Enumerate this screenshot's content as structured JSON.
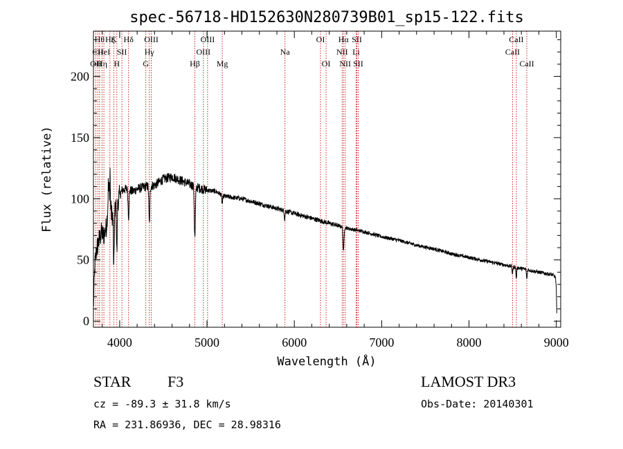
{
  "chart_data": {
    "type": "line",
    "title": "spec-56718-HD152630N280739B01_sp15-122.fits",
    "xlabel": "Wavelength (Å)",
    "ylabel": "Flux (relative)",
    "xlim": [
      3700,
      9050
    ],
    "ylim": [
      -5,
      237
    ],
    "xticks": [
      {
        "value": 4000,
        "label": "4000"
      },
      {
        "value": 5000,
        "label": "5000"
      },
      {
        "value": 6000,
        "label": "6000"
      },
      {
        "value": 7000,
        "label": "7000"
      },
      {
        "value": 8000,
        "label": "8000"
      },
      {
        "value": 9000,
        "label": "9000"
      }
    ],
    "yticks": [
      {
        "value": 0,
        "label": "0"
      },
      {
        "value": 50,
        "label": "50"
      },
      {
        "value": 100,
        "label": "100"
      },
      {
        "value": 150,
        "label": "150"
      },
      {
        "value": 200,
        "label": "200"
      }
    ],
    "spectrum_anchors": [
      [
        3700,
        10
      ],
      [
        3715,
        45
      ],
      [
        3735,
        58
      ],
      [
        3760,
        65
      ],
      [
        3790,
        72
      ],
      [
        3820,
        70
      ],
      [
        3850,
        78
      ],
      [
        3880,
        110
      ],
      [
        3905,
        88
      ],
      [
        3930,
        85
      ],
      [
        3950,
        92
      ],
      [
        3980,
        98
      ],
      [
        4000,
        103
      ],
      [
        4030,
        107
      ],
      [
        4080,
        108
      ],
      [
        4150,
        106
      ],
      [
        4200,
        108
      ],
      [
        4300,
        110
      ],
      [
        4400,
        111
      ],
      [
        4500,
        116
      ],
      [
        4600,
        118
      ],
      [
        4700,
        115
      ],
      [
        4800,
        112
      ],
      [
        4900,
        109
      ],
      [
        5000,
        107
      ],
      [
        5100,
        106
      ],
      [
        5200,
        102
      ],
      [
        5300,
        101
      ],
      [
        5400,
        100
      ],
      [
        5500,
        98
      ],
      [
        5600,
        96
      ],
      [
        5700,
        94
      ],
      [
        5800,
        92
      ],
      [
        5900,
        90
      ],
      [
        6000,
        88
      ],
      [
        6200,
        84
      ],
      [
        6400,
        80
      ],
      [
        6600,
        76
      ],
      [
        6800,
        73
      ],
      [
        7000,
        69
      ],
      [
        7200,
        66
      ],
      [
        7400,
        62
      ],
      [
        7600,
        59
      ],
      [
        7800,
        55
      ],
      [
        8000,
        52
      ],
      [
        8200,
        49
      ],
      [
        8400,
        46
      ],
      [
        8600,
        43
      ],
      [
        8800,
        40
      ],
      [
        8950,
        38
      ],
      [
        8990,
        36
      ],
      [
        9000,
        25
      ],
      [
        9005,
        5
      ]
    ],
    "absorption_lines": [
      {
        "center": 3933,
        "depth": 45,
        "width": 6
      },
      {
        "center": 3968,
        "depth": 40,
        "width": 6
      },
      {
        "center": 4102,
        "depth": 22,
        "width": 8
      },
      {
        "center": 4340,
        "depth": 30,
        "width": 8
      },
      {
        "center": 4861,
        "depth": 42,
        "width": 9
      },
      {
        "center": 5175,
        "depth": 7,
        "width": 8
      },
      {
        "center": 5890,
        "depth": 7,
        "width": 6
      },
      {
        "center": 6563,
        "depth": 20,
        "width": 8
      },
      {
        "center": 8498,
        "depth": 6,
        "width": 6
      },
      {
        "center": 8542,
        "depth": 9,
        "width": 6
      },
      {
        "center": 8662,
        "depth": 8,
        "width": 6
      }
    ],
    "emission_spikes": [
      {
        "center": 3890,
        "height": 25,
        "width": 3
      },
      {
        "center": 3870,
        "height": 12,
        "width": 3
      }
    ],
    "line_markers": [
      {
        "wavelength": 3727,
        "label": "OII",
        "row": 2
      },
      {
        "wavelength": 3750,
        "label": "CII",
        "row": 1
      },
      {
        "wavelength": 3770,
        "label": "Hθ",
        "row": 0
      },
      {
        "wavelength": 3798,
        "label": "Hη",
        "row": 2
      },
      {
        "wavelength": 3820,
        "label": "HeI",
        "row": 1
      },
      {
        "wavelength": 3889,
        "label": "Hζ",
        "row": 0
      },
      {
        "wavelength": 3933,
        "label": "K",
        "row": 0
      },
      {
        "wavelength": 3968,
        "label": "H",
        "row": 2
      },
      {
        "wavelength": 4026,
        "label": "SII",
        "row": 1
      },
      {
        "wavelength": 4102,
        "label": "Hδ",
        "row": 0
      },
      {
        "wavelength": 4300,
        "label": "G",
        "row": 2
      },
      {
        "wavelength": 4340,
        "label": "Hγ",
        "row": 1
      },
      {
        "wavelength": 4363,
        "label": "OIII",
        "row": 0
      },
      {
        "wavelength": 4861,
        "label": "Hβ",
        "row": 2
      },
      {
        "wavelength": 4959,
        "label": "OIII",
        "row": 1
      },
      {
        "wavelength": 5007,
        "label": "OIII",
        "row": 0
      },
      {
        "wavelength": 5175,
        "label": "Mg",
        "row": 2
      },
      {
        "wavelength": 5893,
        "label": "Na",
        "row": 1
      },
      {
        "wavelength": 6300,
        "label": "OI",
        "row": 0
      },
      {
        "wavelength": 6364,
        "label": "OI",
        "row": 2
      },
      {
        "wavelength": 6548,
        "label": "NII",
        "row": 1
      },
      {
        "wavelength": 6563,
        "label": "Hα",
        "row": 0
      },
      {
        "wavelength": 6583,
        "label": "NII",
        "row": 2
      },
      {
        "wavelength": 6707,
        "label": "Li",
        "row": 1
      },
      {
        "wavelength": 6716,
        "label": "SII",
        "row": 0
      },
      {
        "wavelength": 6731,
        "label": "SII",
        "row": 2
      },
      {
        "wavelength": 8498,
        "label": "CaII",
        "row": 1
      },
      {
        "wavelength": 8542,
        "label": "CaII",
        "row": 0
      },
      {
        "wavelength": 8662,
        "label": "CaII",
        "row": 2
      }
    ]
  },
  "info": {
    "object_class": "STAR",
    "subclass": "F3",
    "survey": "LAMOST DR3",
    "cz": "cz = -89.3 ± 31.8 km/s",
    "obs_date": "Obs-Date: 20140301",
    "coords": "RA = 231.86936, DEC =  28.98316"
  },
  "colors": {
    "spectrum": "#000000",
    "marker_line": "#cc0000",
    "axes": "#000000"
  }
}
